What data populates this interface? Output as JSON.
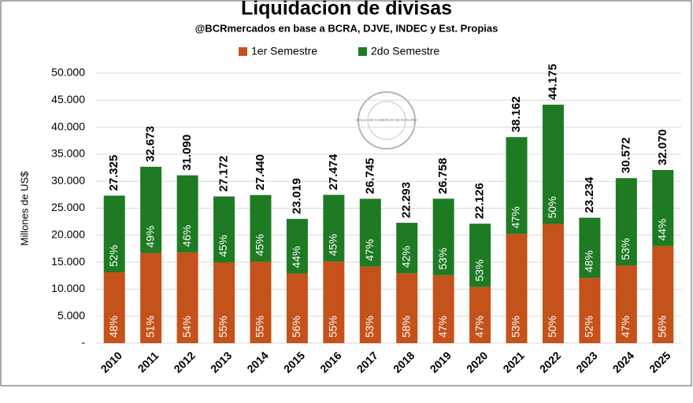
{
  "chart_data": {
    "type": "stacked_bar",
    "title": "Liquidacion de divisas",
    "subtitle": "@BCRmercados  en base a BCRA,  DJVE, INDEC y Est. Propias",
    "y_label": "Millones de US$",
    "watermark": "BOLSA DE COMERCIO DE ROSARIO",
    "categories": [
      "2010",
      "2011",
      "2012",
      "2013",
      "2014",
      "2015",
      "2016",
      "2017",
      "2018",
      "2019",
      "2020",
      "2021",
      "2022",
      "2023",
      "2024",
      "2025"
    ],
    "series": [
      {
        "name": "1er Semestre",
        "color": "#c5521a",
        "values": [
          13116,
          16663,
          16789,
          14945,
          15092,
          12891,
          15111,
          14175,
          12930,
          12576,
          10399,
          20226,
          22088,
          12082,
          14369,
          17959
        ],
        "share_labels": [
          "48%",
          "51%",
          "54%",
          "55%",
          "55%",
          "56%",
          "55%",
          "53%",
          "58%",
          "47%",
          "47%",
          "53%",
          "50%",
          "52%",
          "47%",
          "56%"
        ]
      },
      {
        "name": "2do Semestre",
        "color": "#1f7a24",
        "values": [
          14209,
          16010,
          14301,
          12227,
          12348,
          10128,
          12363,
          12570,
          9363,
          14182,
          11727,
          17936,
          22087,
          11152,
          16203,
          14111
        ],
        "share_labels": [
          "52%",
          "49%",
          "46%",
          "45%",
          "45%",
          "44%",
          "45%",
          "47%",
          "42%",
          "53%",
          "53%",
          "47%",
          "50%",
          "48%",
          "53%",
          "44%"
        ]
      }
    ],
    "totals": [
      {
        "value": 27325,
        "label": "27.325"
      },
      {
        "value": 32673,
        "label": "32.673"
      },
      {
        "value": 31090,
        "label": "31.090"
      },
      {
        "value": 27172,
        "label": "27.172"
      },
      {
        "value": 27440,
        "label": "27.440"
      },
      {
        "value": 23019,
        "label": "23.019"
      },
      {
        "value": 27474,
        "label": "27.474"
      },
      {
        "value": 26745,
        "label": "26.745"
      },
      {
        "value": 22293,
        "label": "22.293"
      },
      {
        "value": 26758,
        "label": "26.758"
      },
      {
        "value": 22126,
        "label": "22.126"
      },
      {
        "value": 38162,
        "label": "38.162"
      },
      {
        "value": 44175,
        "label": "44.175"
      },
      {
        "value": 23234,
        "label": "23.234"
      },
      {
        "value": 30572,
        "label": "30.572"
      },
      {
        "value": 32070,
        "label": "32.070"
      }
    ],
    "ylim": [
      0,
      50000
    ],
    "yticks": [
      {
        "value": 0,
        "label": "-"
      },
      {
        "value": 5000,
        "label": "5.000"
      },
      {
        "value": 10000,
        "label": "10.000"
      },
      {
        "value": 15000,
        "label": "15.000"
      },
      {
        "value": 20000,
        "label": "20.000"
      },
      {
        "value": 25000,
        "label": "25.000"
      },
      {
        "value": 30000,
        "label": "30.000"
      },
      {
        "value": 35000,
        "label": "35.000"
      },
      {
        "value": 40000,
        "label": "40.000"
      },
      {
        "value": 45000,
        "label": "45.000"
      },
      {
        "value": 50000,
        "label": "50.000"
      }
    ],
    "grid": true,
    "legend": "top"
  }
}
